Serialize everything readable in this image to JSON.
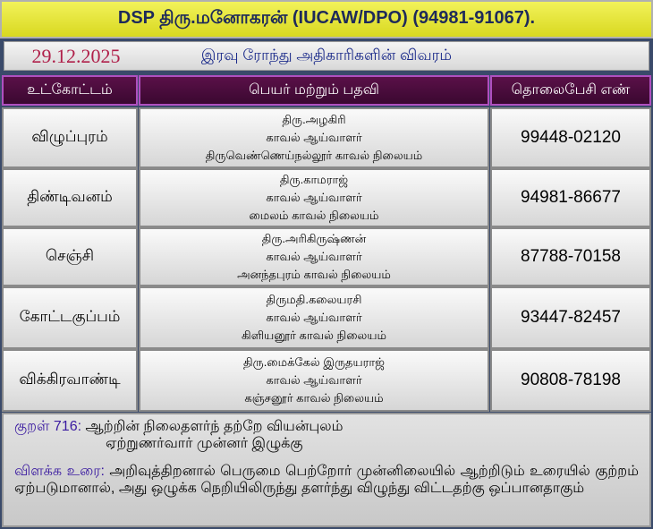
{
  "header": {
    "title": "DSP திரு.மனோகரன் (IUCAW/DPO) (94981-91067).",
    "date": "29.12.2025",
    "subtitle": "இரவு ரோந்து அதிகாரிகளின் விவரம்"
  },
  "columns": [
    "உட்கோட்டம்",
    "பெயர் மற்றும் பதவி",
    "தொலைபேசி எண்"
  ],
  "rows": [
    {
      "subdivision": "விழுப்புரம்",
      "name": "திரு.அழகிரி",
      "designation": "காவல் ஆய்வாளர்",
      "station": "திருவெண்ணெய்நல்லூர் காவல் நிலையம்",
      "phone": "99448-02120"
    },
    {
      "subdivision": "திண்டிவனம்",
      "name": "திரு.காமராஜ்",
      "designation": "காவல் ஆய்வாளர்",
      "station": "மைலம் காவல் நிலையம்",
      "phone": "94981-86677"
    },
    {
      "subdivision": "செஞ்சி",
      "name": "திரு.அரிகிருஷ்ணன்",
      "designation": "காவல் ஆய்வாளர்",
      "station": "அனந்தபுரம் காவல் நிலையம்",
      "phone": "87788-70158"
    },
    {
      "subdivision": "கோட்டகுப்பம்",
      "name": "திருமதி.கலையரசி",
      "designation": "காவல் ஆய்வாளர்",
      "station": "கிளியனூர் காவல் நிலையம்",
      "phone": "93447-82457"
    },
    {
      "subdivision": "விக்கிரவாண்டி",
      "name": "திரு.மைக்கேல் இருதயராஜ்",
      "designation": "காவல் ஆய்வாளர்",
      "station": "கஞ்சனூர் காவல் நிலையம்",
      "phone": "90808-78198"
    }
  ],
  "kural": {
    "label": "குறள் 716:",
    "line1": "ஆற்றின் நிலைதளர்ந் தற்றே வியன்புலம்",
    "line2": "ஏற்றுணர்வார் முன்னர் இழுக்கு",
    "urai_label": "விளக்க உரை:",
    "urai": "அறிவுத்திறனால் பெருமை பெற்றோர் முன்னிலையில் ஆற்றிடும் உரையில் குற்றம் ஏற்படுமானால், அது ஒழுக்க நெறியிலிருந்து தளர்ந்து விழுந்து விட்டதற்கு ஒப்பானதாகும்"
  }
}
